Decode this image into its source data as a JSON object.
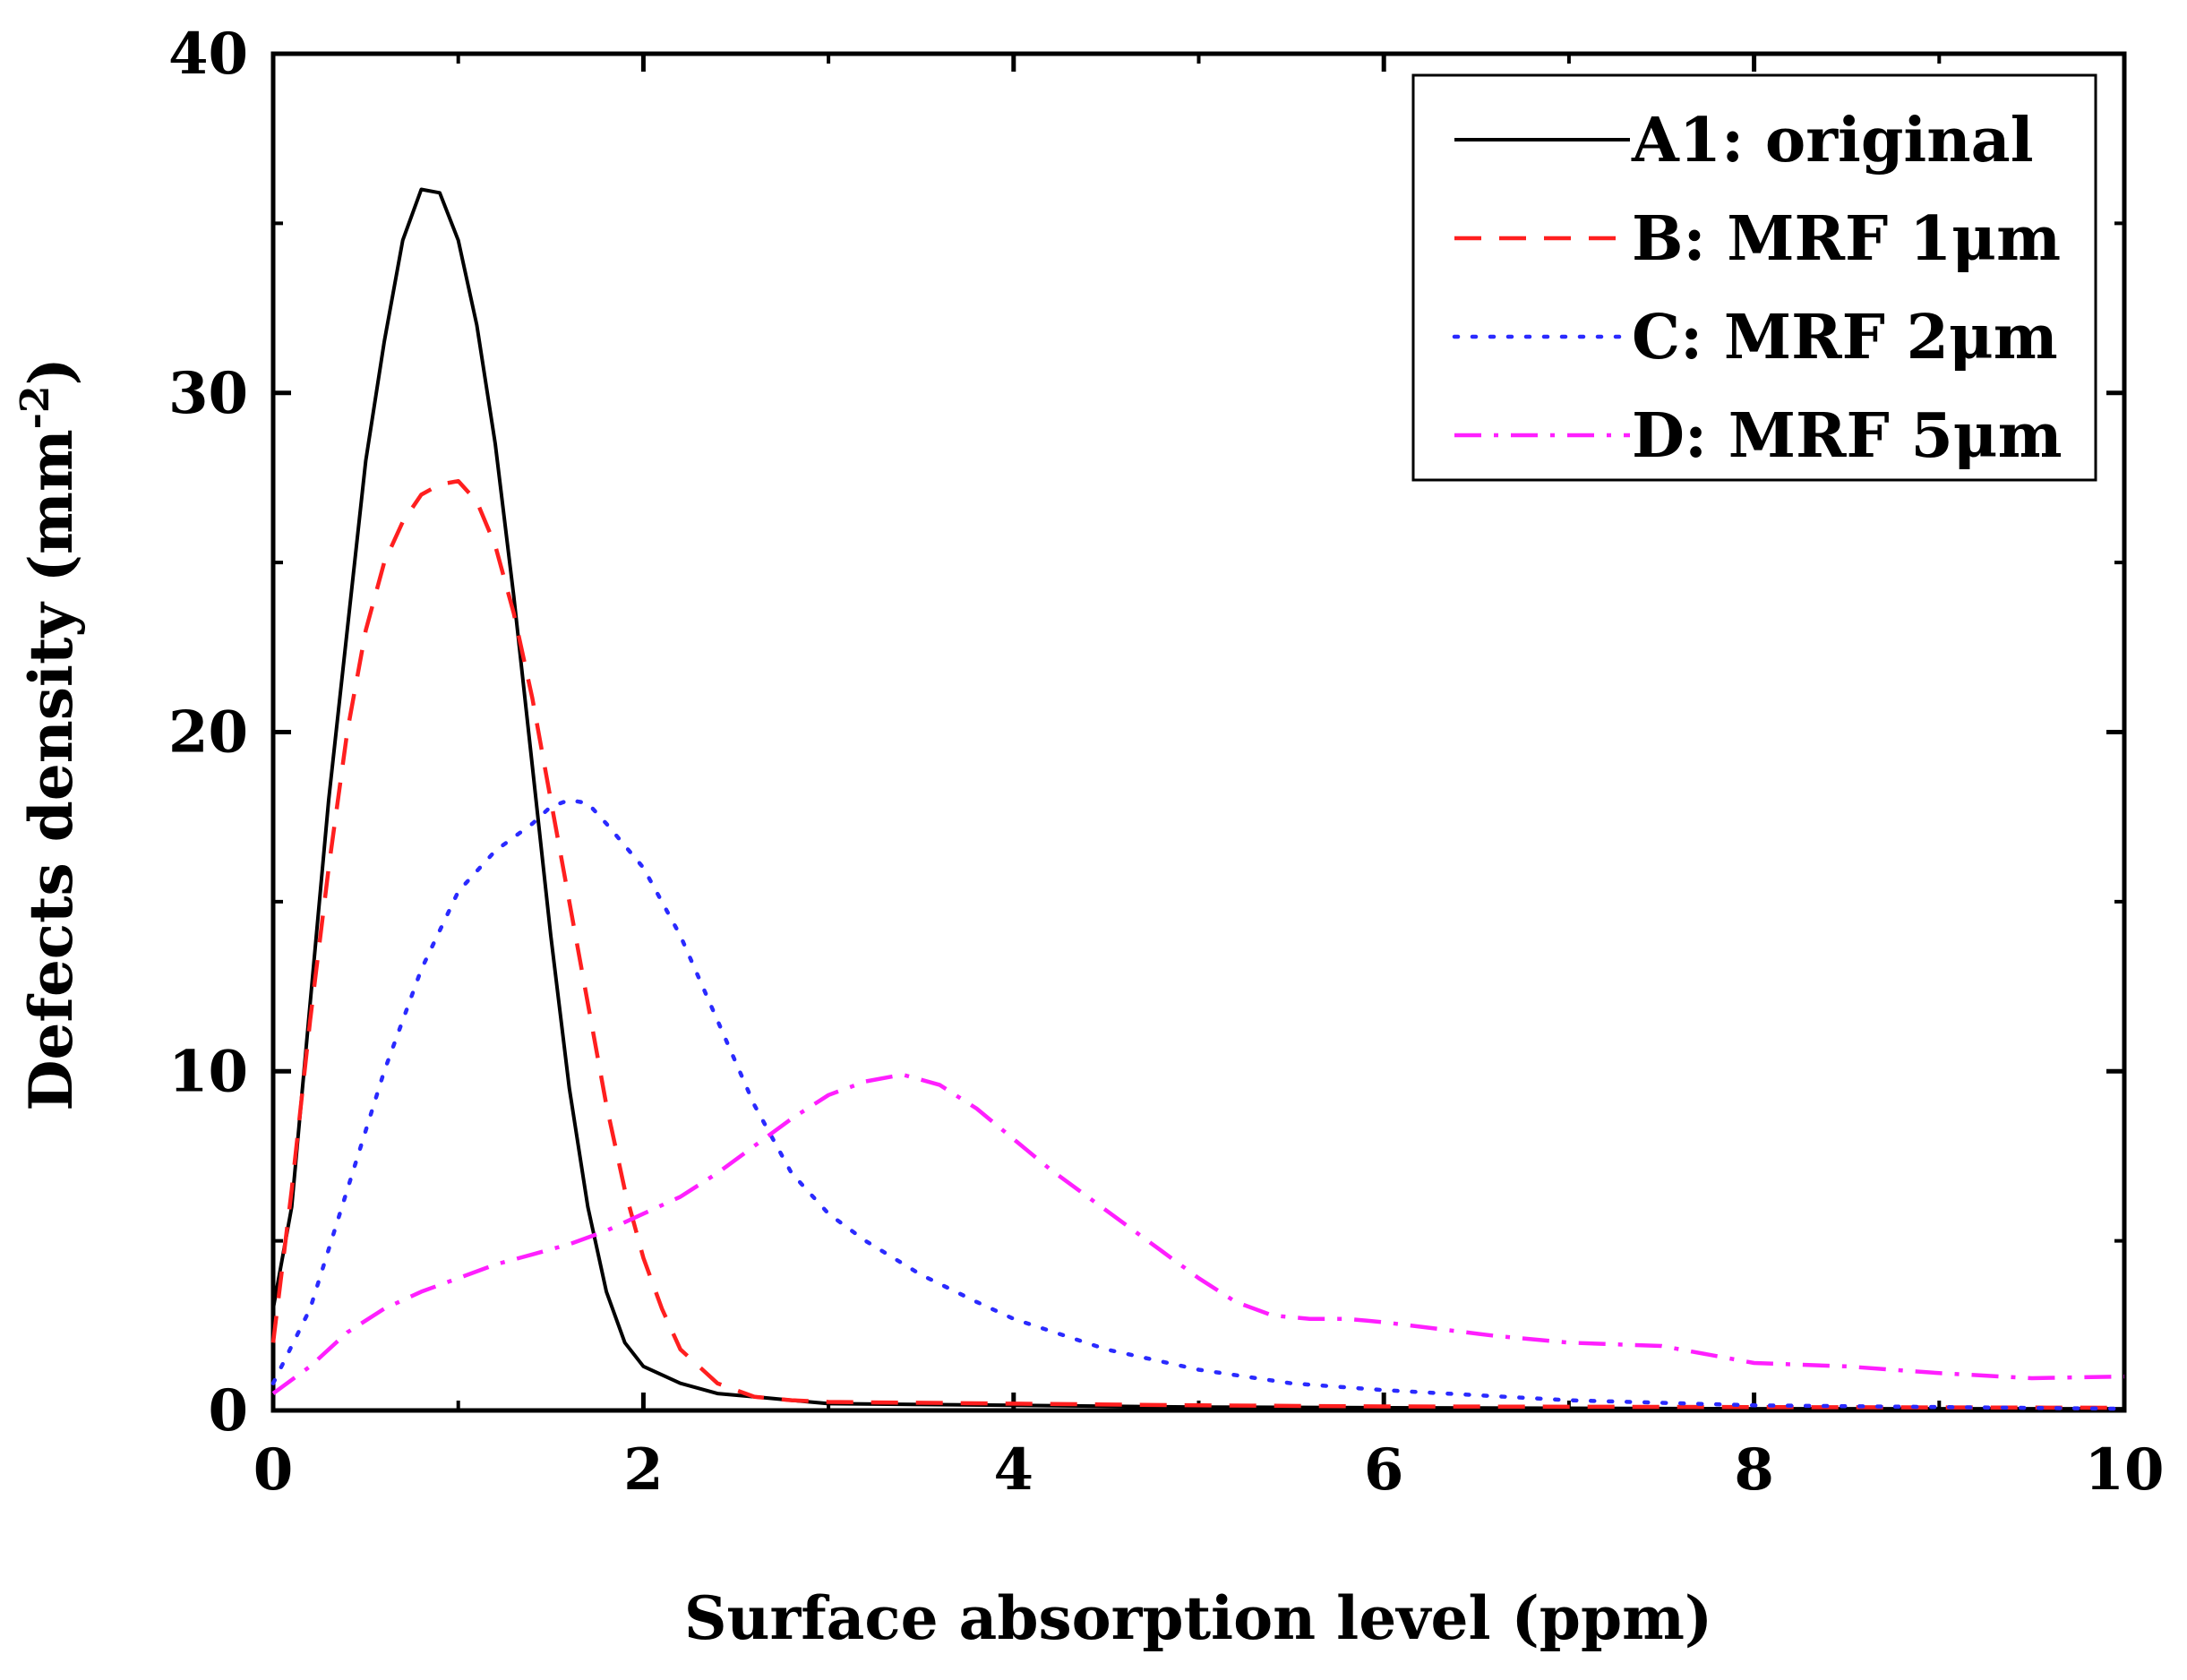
{
  "chart_data": {
    "type": "line",
    "title": "",
    "xlabel": "Surface absorption level (ppm)",
    "ylabel_prefix": "Defects density (mm",
    "ylabel_exp": "-2",
    "ylabel_suffix": ")",
    "xlim": [
      0,
      10
    ],
    "ylim": [
      0,
      40
    ],
    "xticks": [
      0,
      2,
      4,
      6,
      8,
      10
    ],
    "yticks": [
      0,
      10,
      20,
      30,
      40
    ],
    "grid": false,
    "legend_position": "top-right",
    "series": [
      {
        "name": "A1: original",
        "color": "#000000",
        "dash": "solid",
        "points": [
          [
            0,
            3
          ],
          [
            0.1,
            6
          ],
          [
            0.2,
            12
          ],
          [
            0.3,
            18
          ],
          [
            0.4,
            23
          ],
          [
            0.5,
            28
          ],
          [
            0.6,
            31.5
          ],
          [
            0.7,
            34.5
          ],
          [
            0.8,
            36
          ],
          [
            0.9,
            35.9
          ],
          [
            1.0,
            34.5
          ],
          [
            1.1,
            32
          ],
          [
            1.2,
            28.5
          ],
          [
            1.3,
            24
          ],
          [
            1.4,
            19
          ],
          [
            1.5,
            14
          ],
          [
            1.6,
            9.5
          ],
          [
            1.7,
            6
          ],
          [
            1.8,
            3.5
          ],
          [
            1.9,
            2
          ],
          [
            2.0,
            1.3
          ],
          [
            2.2,
            0.8
          ],
          [
            2.4,
            0.5
          ],
          [
            2.6,
            0.4
          ],
          [
            2.8,
            0.3
          ],
          [
            3.0,
            0.2
          ],
          [
            4,
            0.15
          ],
          [
            5,
            0.1
          ],
          [
            6,
            0.08
          ],
          [
            8,
            0.05
          ],
          [
            10,
            0.05
          ]
        ]
      },
      {
        "name": "B: MRF 1μm",
        "color": "#ff1f1f",
        "dash": "dashed",
        "points": [
          [
            0,
            2
          ],
          [
            0.1,
            6.5
          ],
          [
            0.2,
            11.5
          ],
          [
            0.3,
            16
          ],
          [
            0.4,
            20
          ],
          [
            0.5,
            23
          ],
          [
            0.6,
            25
          ],
          [
            0.7,
            26.2
          ],
          [
            0.8,
            27
          ],
          [
            0.9,
            27.3
          ],
          [
            1.0,
            27.4
          ],
          [
            1.1,
            26.8
          ],
          [
            1.2,
            25.5
          ],
          [
            1.3,
            23.5
          ],
          [
            1.4,
            21
          ],
          [
            1.5,
            18
          ],
          [
            1.6,
            15
          ],
          [
            1.7,
            12
          ],
          [
            1.8,
            9
          ],
          [
            1.9,
            6.5
          ],
          [
            2.0,
            4.5
          ],
          [
            2.1,
            3
          ],
          [
            2.2,
            1.8
          ],
          [
            2.4,
            0.8
          ],
          [
            2.6,
            0.4
          ],
          [
            2.8,
            0.3
          ],
          [
            3.0,
            0.25
          ],
          [
            4,
            0.2
          ],
          [
            5,
            0.15
          ],
          [
            6,
            0.12
          ],
          [
            8,
            0.1
          ],
          [
            10,
            0.08
          ]
        ]
      },
      {
        "name": "C: MRF 2μm",
        "color": "#2a2aff",
        "dash": "dotted",
        "points": [
          [
            0,
            0.8
          ],
          [
            0.2,
            3
          ],
          [
            0.4,
            6.5
          ],
          [
            0.6,
            10
          ],
          [
            0.8,
            13
          ],
          [
            1.0,
            15.3
          ],
          [
            1.2,
            16.5
          ],
          [
            1.4,
            17.3
          ],
          [
            1.5,
            17.8
          ],
          [
            1.6,
            18
          ],
          [
            1.7,
            17.9
          ],
          [
            1.8,
            17.3
          ],
          [
            2.0,
            16
          ],
          [
            2.2,
            14
          ],
          [
            2.4,
            11.5
          ],
          [
            2.6,
            9
          ],
          [
            2.8,
            7
          ],
          [
            3.0,
            5.8
          ],
          [
            3.2,
            5
          ],
          [
            3.5,
            4
          ],
          [
            3.8,
            3.2
          ],
          [
            4,
            2.7
          ],
          [
            4.5,
            1.8
          ],
          [
            5,
            1.2
          ],
          [
            5.5,
            0.8
          ],
          [
            6,
            0.6
          ],
          [
            7,
            0.3
          ],
          [
            8,
            0.15
          ],
          [
            9,
            0.1
          ],
          [
            10,
            0.05
          ]
        ]
      },
      {
        "name": "D: MRF 5μm",
        "color": "#ff1fff",
        "dash": "dashdot",
        "points": [
          [
            0,
            0.5
          ],
          [
            0.2,
            1.3
          ],
          [
            0.4,
            2.3
          ],
          [
            0.6,
            3
          ],
          [
            0.8,
            3.5
          ],
          [
            1.0,
            3.9
          ],
          [
            1.2,
            4.3
          ],
          [
            1.4,
            4.6
          ],
          [
            1.6,
            4.9
          ],
          [
            1.8,
            5.3
          ],
          [
            2.0,
            5.8
          ],
          [
            2.2,
            6.3
          ],
          [
            2.4,
            7
          ],
          [
            2.6,
            7.8
          ],
          [
            2.8,
            8.6
          ],
          [
            3.0,
            9.3
          ],
          [
            3.2,
            9.7
          ],
          [
            3.4,
            9.9
          ],
          [
            3.6,
            9.6
          ],
          [
            3.8,
            8.9
          ],
          [
            4.0,
            8
          ],
          [
            4.2,
            7.1
          ],
          [
            4.4,
            6.3
          ],
          [
            4.6,
            5.5
          ],
          [
            4.8,
            4.7
          ],
          [
            5.0,
            3.9
          ],
          [
            5.2,
            3.2
          ],
          [
            5.4,
            2.8
          ],
          [
            5.6,
            2.7
          ],
          [
            5.8,
            2.7
          ],
          [
            6.0,
            2.6
          ],
          [
            6.3,
            2.4
          ],
          [
            6.6,
            2.2
          ],
          [
            7.0,
            2.0
          ],
          [
            7.5,
            1.9
          ],
          [
            8.0,
            1.4
          ],
          [
            8.5,
            1.3
          ],
          [
            9.0,
            1.1
          ],
          [
            9.5,
            0.95
          ],
          [
            10,
            1.0
          ]
        ]
      }
    ]
  }
}
